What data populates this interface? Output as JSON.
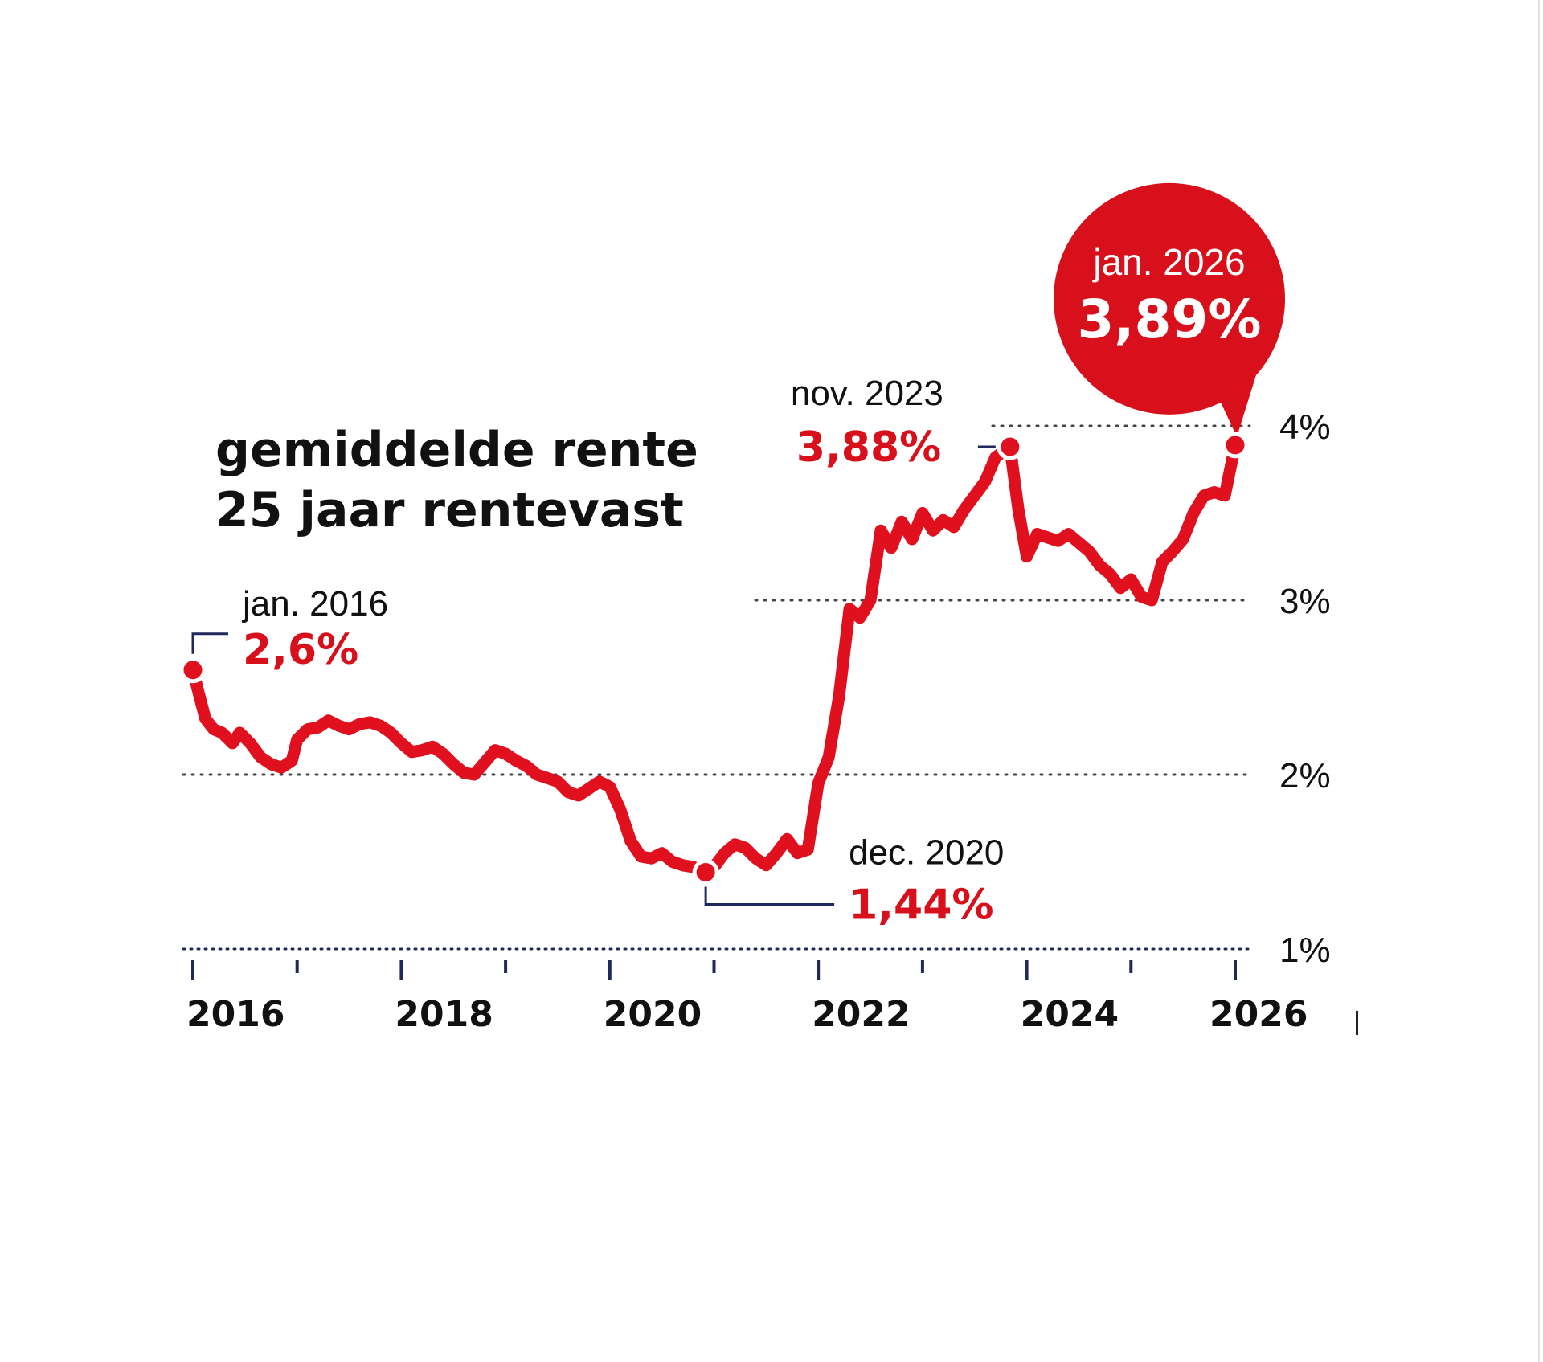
{
  "chart_data": {
    "type": "line",
    "title_lines": [
      "gemiddelde rente",
      "25 jaar rentevast"
    ],
    "xlabel": "",
    "ylabel": "",
    "x_range": [
      2016.0,
      2026.0
    ],
    "ylim": [
      1,
      4
    ],
    "x_tick_labels": [
      {
        "year": 2016,
        "label": "2016"
      },
      {
        "year": 2018,
        "label": "2018"
      },
      {
        "year": 2020,
        "label": "2020"
      },
      {
        "year": 2022,
        "label": "2022"
      },
      {
        "year": 2024,
        "label": "2024"
      },
      {
        "year": 2026,
        "label": "2026"
      }
    ],
    "x_minor_ticks": [
      2017,
      2019,
      2021,
      2023,
      2025
    ],
    "y_ticks": [
      {
        "value": 1,
        "label": "1%"
      },
      {
        "value": 2,
        "label": "2%"
      },
      {
        "value": 3,
        "label": "3%"
      },
      {
        "value": 4,
        "label": "4%"
      }
    ],
    "grid": true,
    "series": [
      {
        "color": "#e0101e",
        "points": [
          [
            2016.0,
            2.6
          ],
          [
            2016.05,
            2.48
          ],
          [
            2016.12,
            2.32
          ],
          [
            2016.2,
            2.26
          ],
          [
            2016.28,
            2.24
          ],
          [
            2016.38,
            2.18
          ],
          [
            2016.45,
            2.24
          ],
          [
            2016.55,
            2.18
          ],
          [
            2016.65,
            2.1
          ],
          [
            2016.75,
            2.06
          ],
          [
            2016.85,
            2.04
          ],
          [
            2016.95,
            2.08
          ],
          [
            2017.0,
            2.2
          ],
          [
            2017.1,
            2.26
          ],
          [
            2017.2,
            2.27
          ],
          [
            2017.3,
            2.31
          ],
          [
            2017.4,
            2.28
          ],
          [
            2017.5,
            2.26
          ],
          [
            2017.6,
            2.29
          ],
          [
            2017.7,
            2.3
          ],
          [
            2017.8,
            2.28
          ],
          [
            2017.9,
            2.24
          ],
          [
            2018.0,
            2.18
          ],
          [
            2018.1,
            2.13
          ],
          [
            2018.2,
            2.14
          ],
          [
            2018.3,
            2.16
          ],
          [
            2018.4,
            2.12
          ],
          [
            2018.5,
            2.06
          ],
          [
            2018.6,
            2.01
          ],
          [
            2018.7,
            2.0
          ],
          [
            2018.8,
            2.07
          ],
          [
            2018.9,
            2.14
          ],
          [
            2019.0,
            2.12
          ],
          [
            2019.1,
            2.08
          ],
          [
            2019.2,
            2.05
          ],
          [
            2019.3,
            2.0
          ],
          [
            2019.4,
            1.98
          ],
          [
            2019.5,
            1.96
          ],
          [
            2019.6,
            1.9
          ],
          [
            2019.7,
            1.88
          ],
          [
            2019.8,
            1.92
          ],
          [
            2019.9,
            1.96
          ],
          [
            2020.0,
            1.93
          ],
          [
            2020.1,
            1.8
          ],
          [
            2020.2,
            1.62
          ],
          [
            2020.3,
            1.53
          ],
          [
            2020.4,
            1.52
          ],
          [
            2020.5,
            1.55
          ],
          [
            2020.6,
            1.5
          ],
          [
            2020.7,
            1.48
          ],
          [
            2020.8,
            1.47
          ],
          [
            2020.92,
            1.44
          ],
          [
            2021.0,
            1.47
          ],
          [
            2021.1,
            1.55
          ],
          [
            2021.2,
            1.6
          ],
          [
            2021.3,
            1.58
          ],
          [
            2021.4,
            1.52
          ],
          [
            2021.5,
            1.48
          ],
          [
            2021.6,
            1.55
          ],
          [
            2021.7,
            1.63
          ],
          [
            2021.8,
            1.55
          ],
          [
            2021.9,
            1.57
          ],
          [
            2022.0,
            1.95
          ],
          [
            2022.1,
            2.1
          ],
          [
            2022.2,
            2.45
          ],
          [
            2022.3,
            2.95
          ],
          [
            2022.4,
            2.9
          ],
          [
            2022.5,
            3.0
          ],
          [
            2022.6,
            3.4
          ],
          [
            2022.7,
            3.3
          ],
          [
            2022.8,
            3.45
          ],
          [
            2022.9,
            3.35
          ],
          [
            2023.0,
            3.5
          ],
          [
            2023.1,
            3.4
          ],
          [
            2023.2,
            3.46
          ],
          [
            2023.3,
            3.42
          ],
          [
            2023.4,
            3.52
          ],
          [
            2023.5,
            3.6
          ],
          [
            2023.6,
            3.68
          ],
          [
            2023.7,
            3.82
          ],
          [
            2023.84,
            3.88
          ],
          [
            2023.92,
            3.52
          ],
          [
            2024.0,
            3.25
          ],
          [
            2024.1,
            3.38
          ],
          [
            2024.2,
            3.36
          ],
          [
            2024.3,
            3.34
          ],
          [
            2024.4,
            3.38
          ],
          [
            2024.5,
            3.33
          ],
          [
            2024.6,
            3.28
          ],
          [
            2024.7,
            3.2
          ],
          [
            2024.8,
            3.15
          ],
          [
            2024.9,
            3.07
          ],
          [
            2025.0,
            3.12
          ],
          [
            2025.1,
            3.02
          ],
          [
            2025.2,
            3.0
          ],
          [
            2025.3,
            3.22
          ],
          [
            2025.4,
            3.28
          ],
          [
            2025.5,
            3.35
          ],
          [
            2025.6,
            3.5
          ],
          [
            2025.7,
            3.6
          ],
          [
            2025.8,
            3.62
          ],
          [
            2025.9,
            3.6
          ],
          [
            2026.0,
            3.89
          ]
        ]
      }
    ],
    "annotations": [
      {
        "id": "start",
        "date": "jan. 2016",
        "value_label": "2,6%",
        "x": 2016.0,
        "y": 2.6
      },
      {
        "id": "low",
        "date": "dec. 2020",
        "value_label": "1,44%",
        "x": 2020.92,
        "y": 1.44
      },
      {
        "id": "peak",
        "date": "nov. 2023",
        "value_label": "3,88%",
        "x": 2023.84,
        "y": 3.88
      },
      {
        "id": "latest",
        "date": "jan. 2026",
        "value_label": "3,89%",
        "x": 2026.0,
        "y": 3.89
      }
    ],
    "colors": {
      "line": "#e0101e",
      "highlight_bubble": "#d8101c",
      "axis": "#1f2a5a",
      "text": "#111111"
    }
  }
}
